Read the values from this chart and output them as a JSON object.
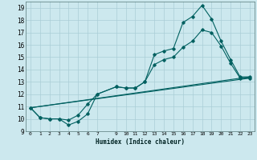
{
  "xlabel": "Humidex (Indice chaleur)",
  "bg_color": "#cce8ee",
  "grid_color": "#aacdd6",
  "line_color": "#006060",
  "xlim": [
    -0.5,
    23.5
  ],
  "ylim": [
    9.0,
    19.5
  ],
  "yticks": [
    9,
    10,
    11,
    12,
    13,
    14,
    15,
    16,
    17,
    18,
    19
  ],
  "xticks": [
    0,
    1,
    2,
    3,
    4,
    5,
    6,
    7,
    9,
    10,
    11,
    12,
    13,
    14,
    15,
    16,
    17,
    18,
    19,
    20,
    21,
    22,
    23
  ],
  "line1_x": [
    0,
    1,
    2,
    3,
    4,
    5,
    6,
    7,
    9,
    10,
    11,
    12,
    13,
    14,
    15,
    16,
    17,
    18,
    19,
    20,
    21,
    22,
    23
  ],
  "line1_y": [
    10.9,
    10.1,
    10.0,
    10.0,
    9.5,
    9.8,
    10.4,
    12.0,
    12.6,
    12.5,
    12.5,
    13.0,
    15.2,
    15.5,
    15.7,
    17.8,
    18.3,
    19.2,
    18.1,
    16.3,
    14.8,
    13.4,
    13.4
  ],
  "line2_x": [
    0,
    1,
    2,
    3,
    4,
    5,
    6,
    7,
    9,
    10,
    11,
    12,
    13,
    14,
    15,
    16,
    17,
    18,
    19,
    20,
    21,
    22,
    23
  ],
  "line2_y": [
    10.9,
    10.1,
    10.0,
    10.0,
    9.9,
    10.3,
    11.2,
    12.0,
    12.6,
    12.5,
    12.5,
    13.0,
    14.4,
    14.8,
    15.0,
    15.8,
    16.3,
    17.2,
    17.0,
    15.9,
    14.5,
    13.3,
    13.3
  ],
  "line3_x": [
    0,
    23
  ],
  "line3_y": [
    10.9,
    13.4
  ],
  "line4_x": [
    0,
    23
  ],
  "line4_y": [
    10.9,
    13.3
  ]
}
